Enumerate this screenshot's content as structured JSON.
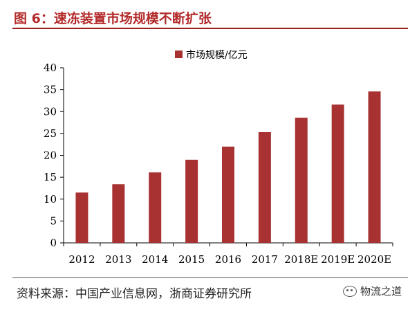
{
  "figure": {
    "title": "图 6：速冻装置市场规模不断扩张",
    "source": "资料来源：中国产业信息网，浙商证券研究所",
    "watermark": "物流之道",
    "watermark_icon": "wechat-icon"
  },
  "colors": {
    "bar": "#a83232",
    "title": "#b32a2a",
    "rule": "#9a1f1f"
  },
  "chart_data": {
    "type": "bar",
    "title": "图 6：速冻装置市场规模不断扩张",
    "xlabel": "",
    "ylabel": "",
    "categories": [
      "2012",
      "2013",
      "2014",
      "2015",
      "2016",
      "2017",
      "2018E",
      "2019E",
      "2020E"
    ],
    "series": [
      {
        "name": "市场规模/亿元",
        "values": [
          11.5,
          13.4,
          16.1,
          19.0,
          22.0,
          25.3,
          28.6,
          31.6,
          34.6
        ]
      }
    ],
    "ylim": [
      0,
      40
    ],
    "yticks": [
      0,
      5,
      10,
      15,
      20,
      25,
      30,
      35,
      40
    ],
    "grid": false,
    "legend_position": "top-right"
  }
}
